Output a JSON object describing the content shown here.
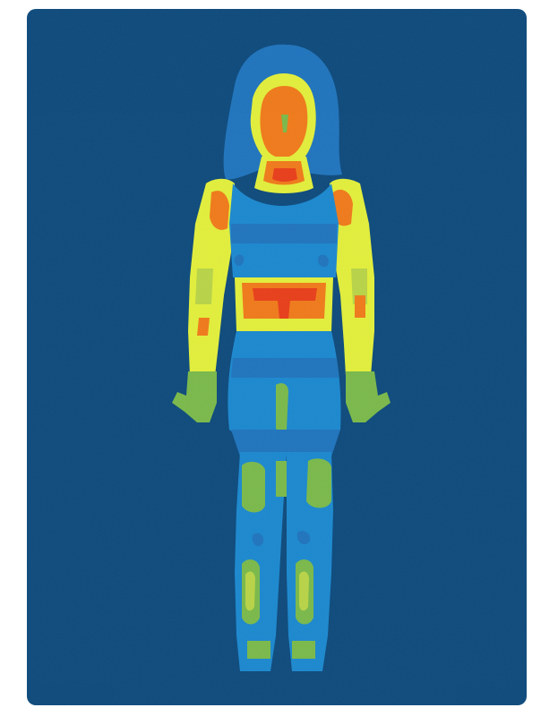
{
  "illustration": {
    "subject": "thermal-body-figure",
    "colors": {
      "background": "#0d4a7c",
      "cold": "#1b88cf",
      "cool": "#1f74bd",
      "mild": "#7ab94a",
      "mild_light": "#b8d447",
      "warm": "#e2ef3b",
      "warmer": "#f4a126",
      "hot": "#f07a1a",
      "hottest": "#e83e1a"
    }
  }
}
